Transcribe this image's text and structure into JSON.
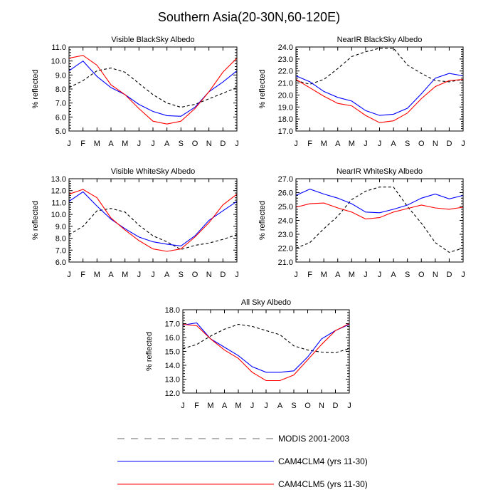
{
  "page_title": "Southern Asia(20-30N,60-120E)",
  "months": [
    "J",
    "F",
    "M",
    "A",
    "M",
    "J",
    "J",
    "A",
    "S",
    "O",
    "N",
    "D",
    "J"
  ],
  "ylabel": "% reflected",
  "series_styles": {
    "modis": {
      "color": "#000000",
      "dashed": true
    },
    "clm4": {
      "color": "#0000ff",
      "dashed": false
    },
    "clm5": {
      "color": "#ff0000",
      "dashed": false
    }
  },
  "legend": [
    {
      "key": "modis",
      "label": "MODIS 2001-2003",
      "color": "#888888",
      "dashed": true
    },
    {
      "key": "clm4",
      "label": "CAM4CLM4 (yrs 11-30)",
      "color": "#0000ff",
      "dashed": false
    },
    {
      "key": "clm5",
      "label": "CAM4CLM5 (yrs 11-30)",
      "color": "#ff0000",
      "dashed": false
    }
  ],
  "chart_data": [
    {
      "type": "line",
      "title": "Visible BlackSky Albedo",
      "ylabel": "% reflected",
      "ylim": [
        5.0,
        11.0
      ],
      "yticks": [
        "5.0",
        "6.0",
        "7.0",
        "8.0",
        "9.0",
        "10.0",
        "11.0"
      ],
      "x": [
        "J",
        "F",
        "M",
        "A",
        "M",
        "J",
        "J",
        "A",
        "S",
        "O",
        "N",
        "D",
        "J"
      ],
      "series": [
        {
          "key": "modis",
          "values": [
            8.1,
            8.6,
            9.3,
            9.5,
            9.2,
            8.4,
            7.6,
            7.0,
            6.7,
            6.9,
            7.3,
            7.7,
            8.1
          ]
        },
        {
          "key": "clm4",
          "values": [
            9.3,
            10.0,
            8.9,
            8.1,
            7.6,
            6.9,
            6.4,
            6.1,
            6.05,
            6.7,
            7.8,
            8.5,
            9.3
          ]
        },
        {
          "key": "clm5",
          "values": [
            10.2,
            10.4,
            9.7,
            8.3,
            7.6,
            6.6,
            5.7,
            5.5,
            5.7,
            6.6,
            7.8,
            9.2,
            10.2
          ]
        }
      ]
    },
    {
      "type": "line",
      "title": "NearIR BlackSky Albedo",
      "ylabel": "% reflected",
      "ylim": [
        17.0,
        24.0
      ],
      "yticks": [
        "17.0",
        "18.0",
        "19.0",
        "20.0",
        "21.0",
        "22.0",
        "23.0",
        "24.0"
      ],
      "x": [
        "J",
        "F",
        "M",
        "A",
        "M",
        "J",
        "J",
        "A",
        "S",
        "O",
        "N",
        "D",
        "J"
      ],
      "series": [
        {
          "key": "modis",
          "values": [
            21.2,
            20.9,
            21.3,
            22.2,
            23.2,
            23.6,
            23.9,
            23.9,
            22.5,
            21.8,
            21.2,
            21.1,
            21.3
          ]
        },
        {
          "key": "clm4",
          "values": [
            21.6,
            21.1,
            20.3,
            19.8,
            19.5,
            18.7,
            18.3,
            18.4,
            18.9,
            20.1,
            21.4,
            21.8,
            21.6
          ]
        },
        {
          "key": "clm5",
          "values": [
            21.3,
            20.6,
            19.9,
            19.3,
            19.1,
            18.3,
            17.7,
            17.85,
            18.5,
            19.7,
            20.7,
            21.2,
            21.3
          ]
        }
      ]
    },
    {
      "type": "line",
      "title": "Visible WhiteSky Albedo",
      "ylabel": "% reflected",
      "ylim": [
        6.0,
        13.0
      ],
      "yticks": [
        "6.0",
        "7.0",
        "8.0",
        "9.0",
        "10.0",
        "11.0",
        "12.0",
        "13.0"
      ],
      "x": [
        "J",
        "F",
        "M",
        "A",
        "M",
        "J",
        "J",
        "A",
        "S",
        "O",
        "N",
        "D",
        "J"
      ],
      "series": [
        {
          "key": "modis",
          "values": [
            8.3,
            9.0,
            10.3,
            10.5,
            10.2,
            9.1,
            8.2,
            7.7,
            7.05,
            7.4,
            7.6,
            7.9,
            8.3
          ]
        },
        {
          "key": "clm4",
          "values": [
            11.1,
            11.9,
            10.7,
            9.6,
            8.8,
            8.1,
            7.7,
            7.5,
            7.35,
            8.2,
            9.5,
            10.3,
            11.1
          ]
        },
        {
          "key": "clm5",
          "values": [
            11.7,
            12.1,
            11.4,
            9.7,
            8.7,
            7.8,
            7.1,
            6.9,
            7.1,
            8.1,
            9.3,
            10.8,
            11.7
          ]
        }
      ]
    },
    {
      "type": "line",
      "title": "NearIR WhiteSky Albedo",
      "ylabel": "% reflected",
      "ylim": [
        21.0,
        27.0
      ],
      "yticks": [
        "21.0",
        "22.0",
        "23.0",
        "24.0",
        "25.0",
        "26.0",
        "27.0"
      ],
      "x": [
        "J",
        "F",
        "M",
        "A",
        "M",
        "J",
        "J",
        "A",
        "S",
        "O",
        "N",
        "D",
        "J"
      ],
      "series": [
        {
          "key": "modis",
          "values": [
            22.0,
            22.4,
            23.4,
            24.3,
            25.5,
            26.1,
            26.4,
            26.4,
            25.0,
            23.8,
            22.4,
            21.7,
            22.0
          ]
        },
        {
          "key": "clm4",
          "values": [
            25.8,
            26.25,
            25.9,
            25.6,
            25.2,
            24.6,
            24.55,
            24.8,
            25.1,
            25.6,
            25.9,
            25.55,
            25.8
          ]
        },
        {
          "key": "clm5",
          "values": [
            24.95,
            25.2,
            25.25,
            24.9,
            24.6,
            24.1,
            24.2,
            24.6,
            24.85,
            25.1,
            24.9,
            24.8,
            24.95
          ]
        }
      ]
    },
    {
      "type": "line",
      "title": "All Sky Albedo",
      "ylabel": "% reflected",
      "ylim": [
        12.0,
        18.0
      ],
      "yticks": [
        "12.0",
        "13.0",
        "14.0",
        "15.0",
        "16.0",
        "17.0",
        "18.0"
      ],
      "x": [
        "J",
        "F",
        "M",
        "A",
        "M",
        "J",
        "J",
        "A",
        "S",
        "O",
        "N",
        "D",
        "J"
      ],
      "series": [
        {
          "key": "modis",
          "values": [
            15.2,
            15.5,
            16.1,
            16.6,
            16.95,
            16.8,
            16.5,
            16.2,
            15.4,
            15.1,
            14.95,
            14.9,
            15.2
          ]
        },
        {
          "key": "clm4",
          "values": [
            16.9,
            17.05,
            15.9,
            15.3,
            14.7,
            13.9,
            13.5,
            13.5,
            13.6,
            14.6,
            15.9,
            16.5,
            16.95
          ]
        },
        {
          "key": "clm5",
          "values": [
            16.95,
            16.85,
            15.9,
            15.1,
            14.5,
            13.5,
            12.9,
            12.9,
            13.3,
            14.4,
            15.5,
            16.5,
            17.0
          ]
        }
      ]
    }
  ]
}
